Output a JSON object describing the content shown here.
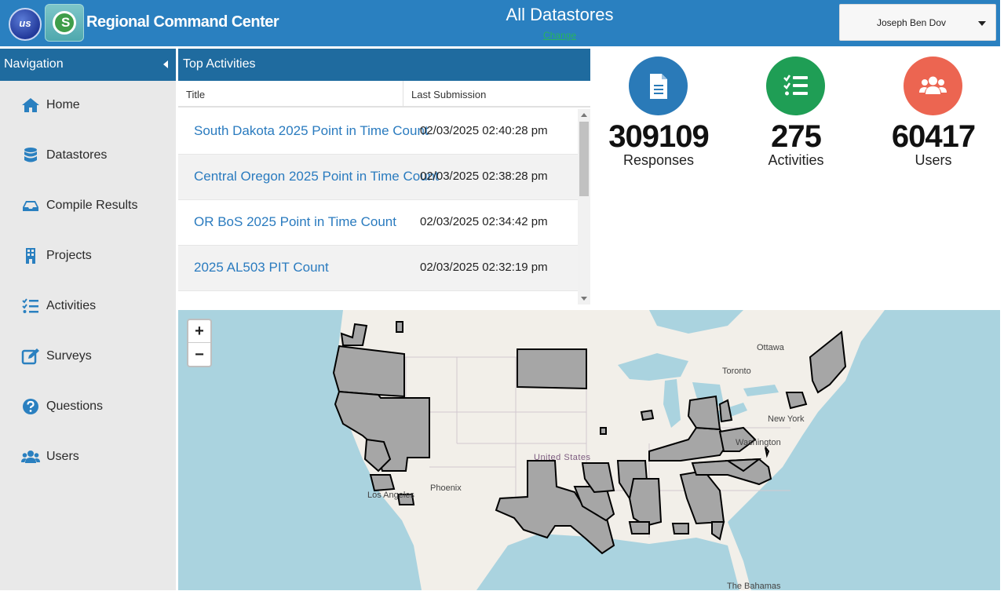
{
  "header": {
    "logo_text": "us",
    "app_title": "Regional Command Center",
    "datastore_title": "All Datastores",
    "change_link": "Change",
    "user_name": "Joseph Ben Dov",
    "accent_color": "#2a80c0"
  },
  "sidebar": {
    "title": "Navigation",
    "items": [
      {
        "label": "Home",
        "icon": "home-icon"
      },
      {
        "label": "Datastores",
        "icon": "database-icon"
      },
      {
        "label": "Compile Results",
        "icon": "inbox-icon"
      },
      {
        "label": "Projects",
        "icon": "building-icon"
      },
      {
        "label": "Activities",
        "icon": "list-check-icon"
      },
      {
        "label": "Surveys",
        "icon": "edit-icon"
      },
      {
        "label": "Questions",
        "icon": "question-circle-icon"
      },
      {
        "label": "Users",
        "icon": "users-icon"
      }
    ]
  },
  "activities": {
    "title": "Top Activities",
    "columns": {
      "title": "Title",
      "last_submission": "Last Submission"
    },
    "rows": [
      {
        "title": "South Dakota 2025 Point in Time Count",
        "date": "02/03/2025 02:40:28 pm"
      },
      {
        "title": "Central Oregon 2025 Point in Time Count",
        "date": "02/03/2025 02:38:28 pm"
      },
      {
        "title": "OR BoS 2025 Point in Time Count",
        "date": "02/03/2025 02:34:42 pm"
      },
      {
        "title": "2025 AL503 PIT Count",
        "date": "02/03/2025 02:32:19 pm"
      }
    ]
  },
  "stats": [
    {
      "value": "309109",
      "label": "Responses",
      "icon": "document-icon",
      "color": "#2a7ab8"
    },
    {
      "value": "275",
      "label": "Activities",
      "icon": "list-check-icon",
      "color": "#1f9e55"
    },
    {
      "value": "60417",
      "label": "Users",
      "icon": "users-icon",
      "color": "#ec6551"
    }
  ],
  "map": {
    "zoom_in": "+",
    "zoom_out": "−",
    "labels": {
      "ottawa": "Ottawa",
      "toronto": "Toronto",
      "new_york": "New York",
      "washington": "Washington",
      "united_states": "United States",
      "phoenix": "Phoenix",
      "los_angeles": "Los Angeles",
      "bahamas": "The Bahamas"
    },
    "water_color": "#aad3df",
    "region_fill": "#a6a6a6"
  }
}
